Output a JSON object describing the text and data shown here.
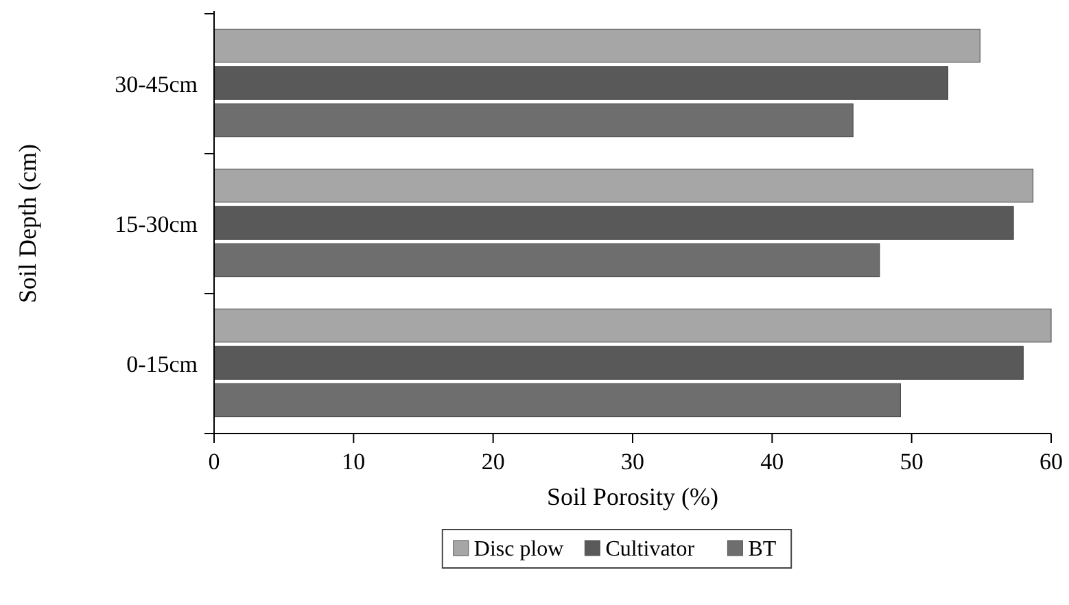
{
  "chart_data": {
    "type": "bar",
    "orientation": "horizontal",
    "xlabel": "Soil Porosity (%)",
    "ylabel": "Soil Depth (cm)",
    "categories": [
      "30-45cm",
      "15-30cm",
      "0-15cm"
    ],
    "series": [
      {
        "name": "Disc plow",
        "color": "#a6a6a6",
        "values": [
          54.9,
          58.7,
          60
        ]
      },
      {
        "name": "Cultivator",
        "color": "#595959",
        "values": [
          52.6,
          57.3,
          58.0
        ]
      },
      {
        "name": "BT",
        "color": "#6e6e6e",
        "values": [
          45.8,
          47.7,
          49.2
        ]
      }
    ],
    "xlim": [
      0,
      60
    ],
    "xticks": [
      0,
      10,
      20,
      30,
      40,
      50,
      60
    ],
    "grid": false,
    "legend": "bottom"
  }
}
